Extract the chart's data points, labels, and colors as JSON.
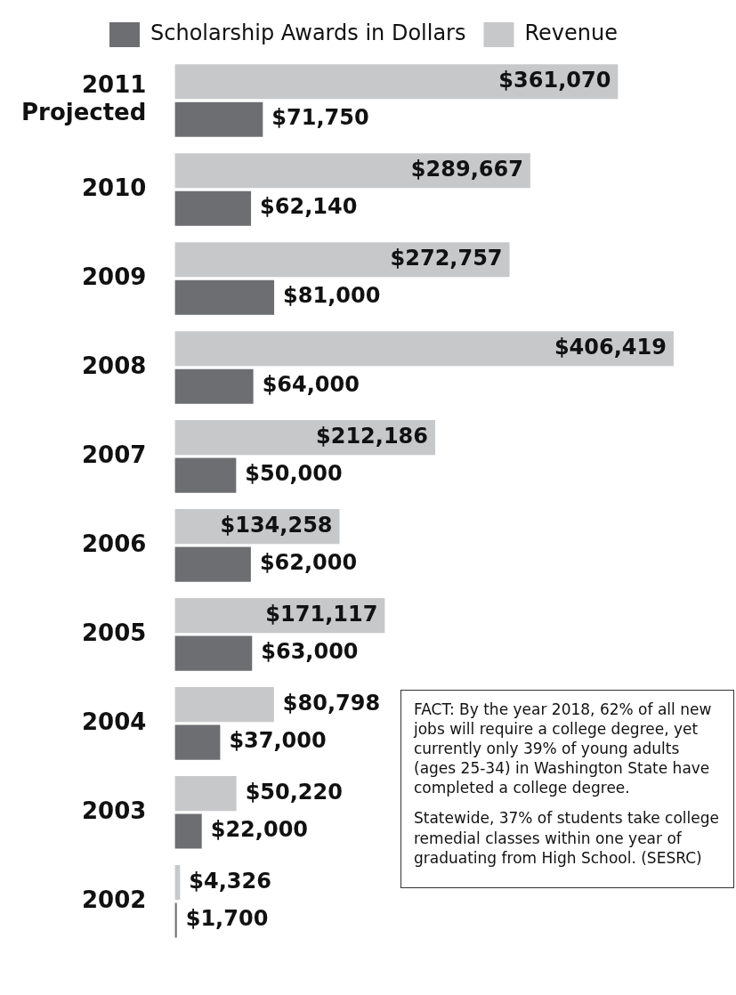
{
  "chart_data": {
    "type": "bar",
    "orientation": "horizontal",
    "categories": [
      "2011 Projected",
      "2010",
      "2009",
      "2008",
      "2007",
      "2006",
      "2005",
      "2004",
      "2003",
      "2002"
    ],
    "series": [
      {
        "name": "Scholarship Awards in Dollars",
        "color": "#6d6e71",
        "values": [
          71750,
          62140,
          81000,
          64000,
          50000,
          62000,
          63000,
          37000,
          22000,
          1700
        ],
        "value_labels": [
          "$71,750",
          "$62,140",
          "$81,000",
          "$64,000",
          "$50,000",
          "$62,000",
          "$63,000",
          "$37,000",
          "$22,000",
          "$1,700"
        ]
      },
      {
        "name": "Revenue",
        "color": "#c7c8ca",
        "values": [
          361070,
          289667,
          272757,
          406419,
          212186,
          134258,
          171117,
          80798,
          50220,
          4326
        ],
        "value_labels": [
          "$361,070",
          "$289,667",
          "$272,757",
          "$406,419",
          "$212,186",
          "$134,258",
          "$171,117",
          "$80,798",
          "$50,220",
          "$4,326"
        ]
      }
    ],
    "legend": "top",
    "annotations": [
      "FACT: By the year 2018, 62% of all new jobs will require a college degree, yet currently only 39% of young adults (ages 25-34) in Washington State have completed a college degree.",
      "Statewide, 37% of students take college remedial classes within one year of graduating from High School. (SESRC)"
    ]
  }
}
